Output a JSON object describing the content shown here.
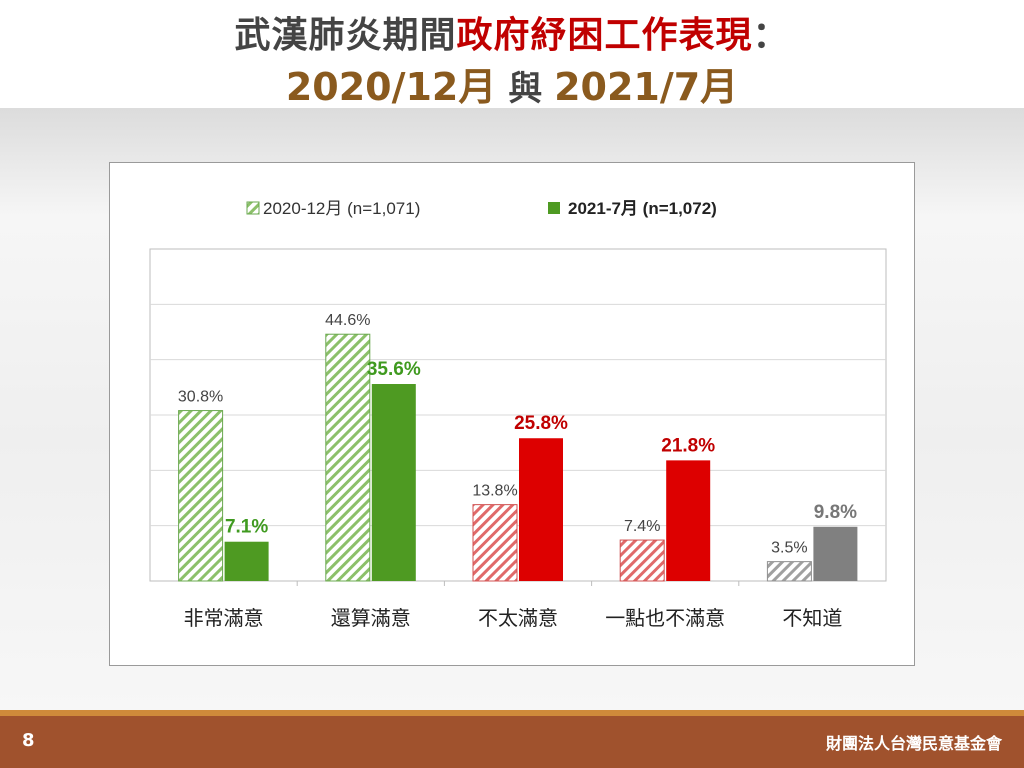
{
  "header": {
    "title_part1": "武漢肺炎期間",
    "title_part2": "政府紓困工作表現",
    "title_part3": "：",
    "subtitle_left": "2020/12月",
    "subtitle_mid": " 與 ",
    "subtitle_right": "2021/7月"
  },
  "footer": {
    "page_number": "8",
    "org_name": "財團法人台灣民意基金會"
  },
  "colors": {
    "green": "#4e9a22",
    "red": "#dd0000",
    "gray": "#808080",
    "green_text": "#3f9a1f",
    "red_text": "#c00000",
    "gray_text": "#777777",
    "title_accent": "#c00000",
    "subtitle": "#8a5a1e",
    "footer": "#a0522d"
  },
  "chart_data": {
    "type": "bar",
    "categories": [
      "非常滿意",
      "還算滿意",
      "不太滿意",
      "一點也不滿意",
      "不知道"
    ],
    "series": [
      {
        "name": "2020-12月",
        "n_label": "(n=1,071)",
        "values": [
          30.8,
          44.6,
          13.8,
          7.4,
          3.5
        ],
        "pattern": "hatched"
      },
      {
        "name": "2021-7月",
        "n_label": "(n=1,072)",
        "values": [
          7.1,
          35.6,
          25.8,
          21.8,
          9.8
        ],
        "pattern": "solid"
      }
    ],
    "bar_colors": [
      "green",
      "green",
      "red",
      "red",
      "gray"
    ],
    "value_suffix": "%",
    "ylim": [
      0,
      60
    ],
    "grid": true,
    "legend_position": "top-center"
  }
}
